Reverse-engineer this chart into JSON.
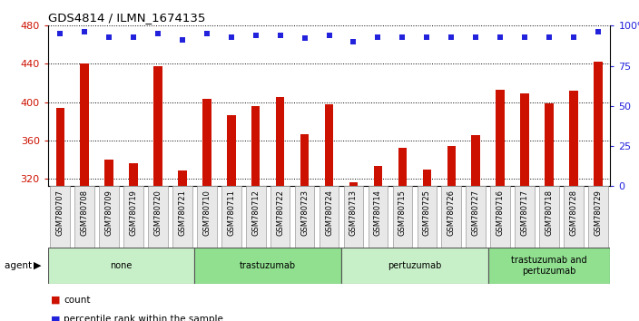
{
  "title": "GDS4814 / ILMN_1674135",
  "samples": [
    "GSM780707",
    "GSM780708",
    "GSM780709",
    "GSM780719",
    "GSM780720",
    "GSM780721",
    "GSM780710",
    "GSM780711",
    "GSM780712",
    "GSM780722",
    "GSM780723",
    "GSM780724",
    "GSM780713",
    "GSM780714",
    "GSM780715",
    "GSM780725",
    "GSM780726",
    "GSM780727",
    "GSM780716",
    "GSM780717",
    "GSM780718",
    "GSM780728",
    "GSM780729"
  ],
  "counts": [
    394,
    440,
    340,
    336,
    438,
    328,
    403,
    386,
    396,
    405,
    366,
    398,
    316,
    333,
    352,
    329,
    354,
    365,
    413,
    409,
    399,
    412,
    442
  ],
  "percentile_ranks": [
    95,
    96,
    93,
    93,
    95,
    91,
    95,
    93,
    94,
    94,
    92,
    94,
    90,
    93,
    93,
    93,
    93,
    93,
    93,
    93,
    93,
    93,
    96
  ],
  "groups": [
    {
      "label": "none",
      "start": 0,
      "end": 6,
      "color": "#c8f0c8"
    },
    {
      "label": "trastuzumab",
      "start": 6,
      "end": 12,
      "color": "#90e090"
    },
    {
      "label": "pertuzumab",
      "start": 12,
      "end": 18,
      "color": "#c8f0c8"
    },
    {
      "label": "trastuzumab and\npertuzumab",
      "start": 18,
      "end": 23,
      "color": "#90e090"
    }
  ],
  "bar_color": "#cc1100",
  "dot_color": "#2222dd",
  "ylim_left": [
    312,
    480
  ],
  "ylim_right": [
    0,
    100
  ],
  "yticks_left": [
    320,
    360,
    400,
    440,
    480
  ],
  "yticks_right": [
    0,
    25,
    50,
    75,
    100
  ],
  "background_color": "#ffffff",
  "group_label": "agent"
}
